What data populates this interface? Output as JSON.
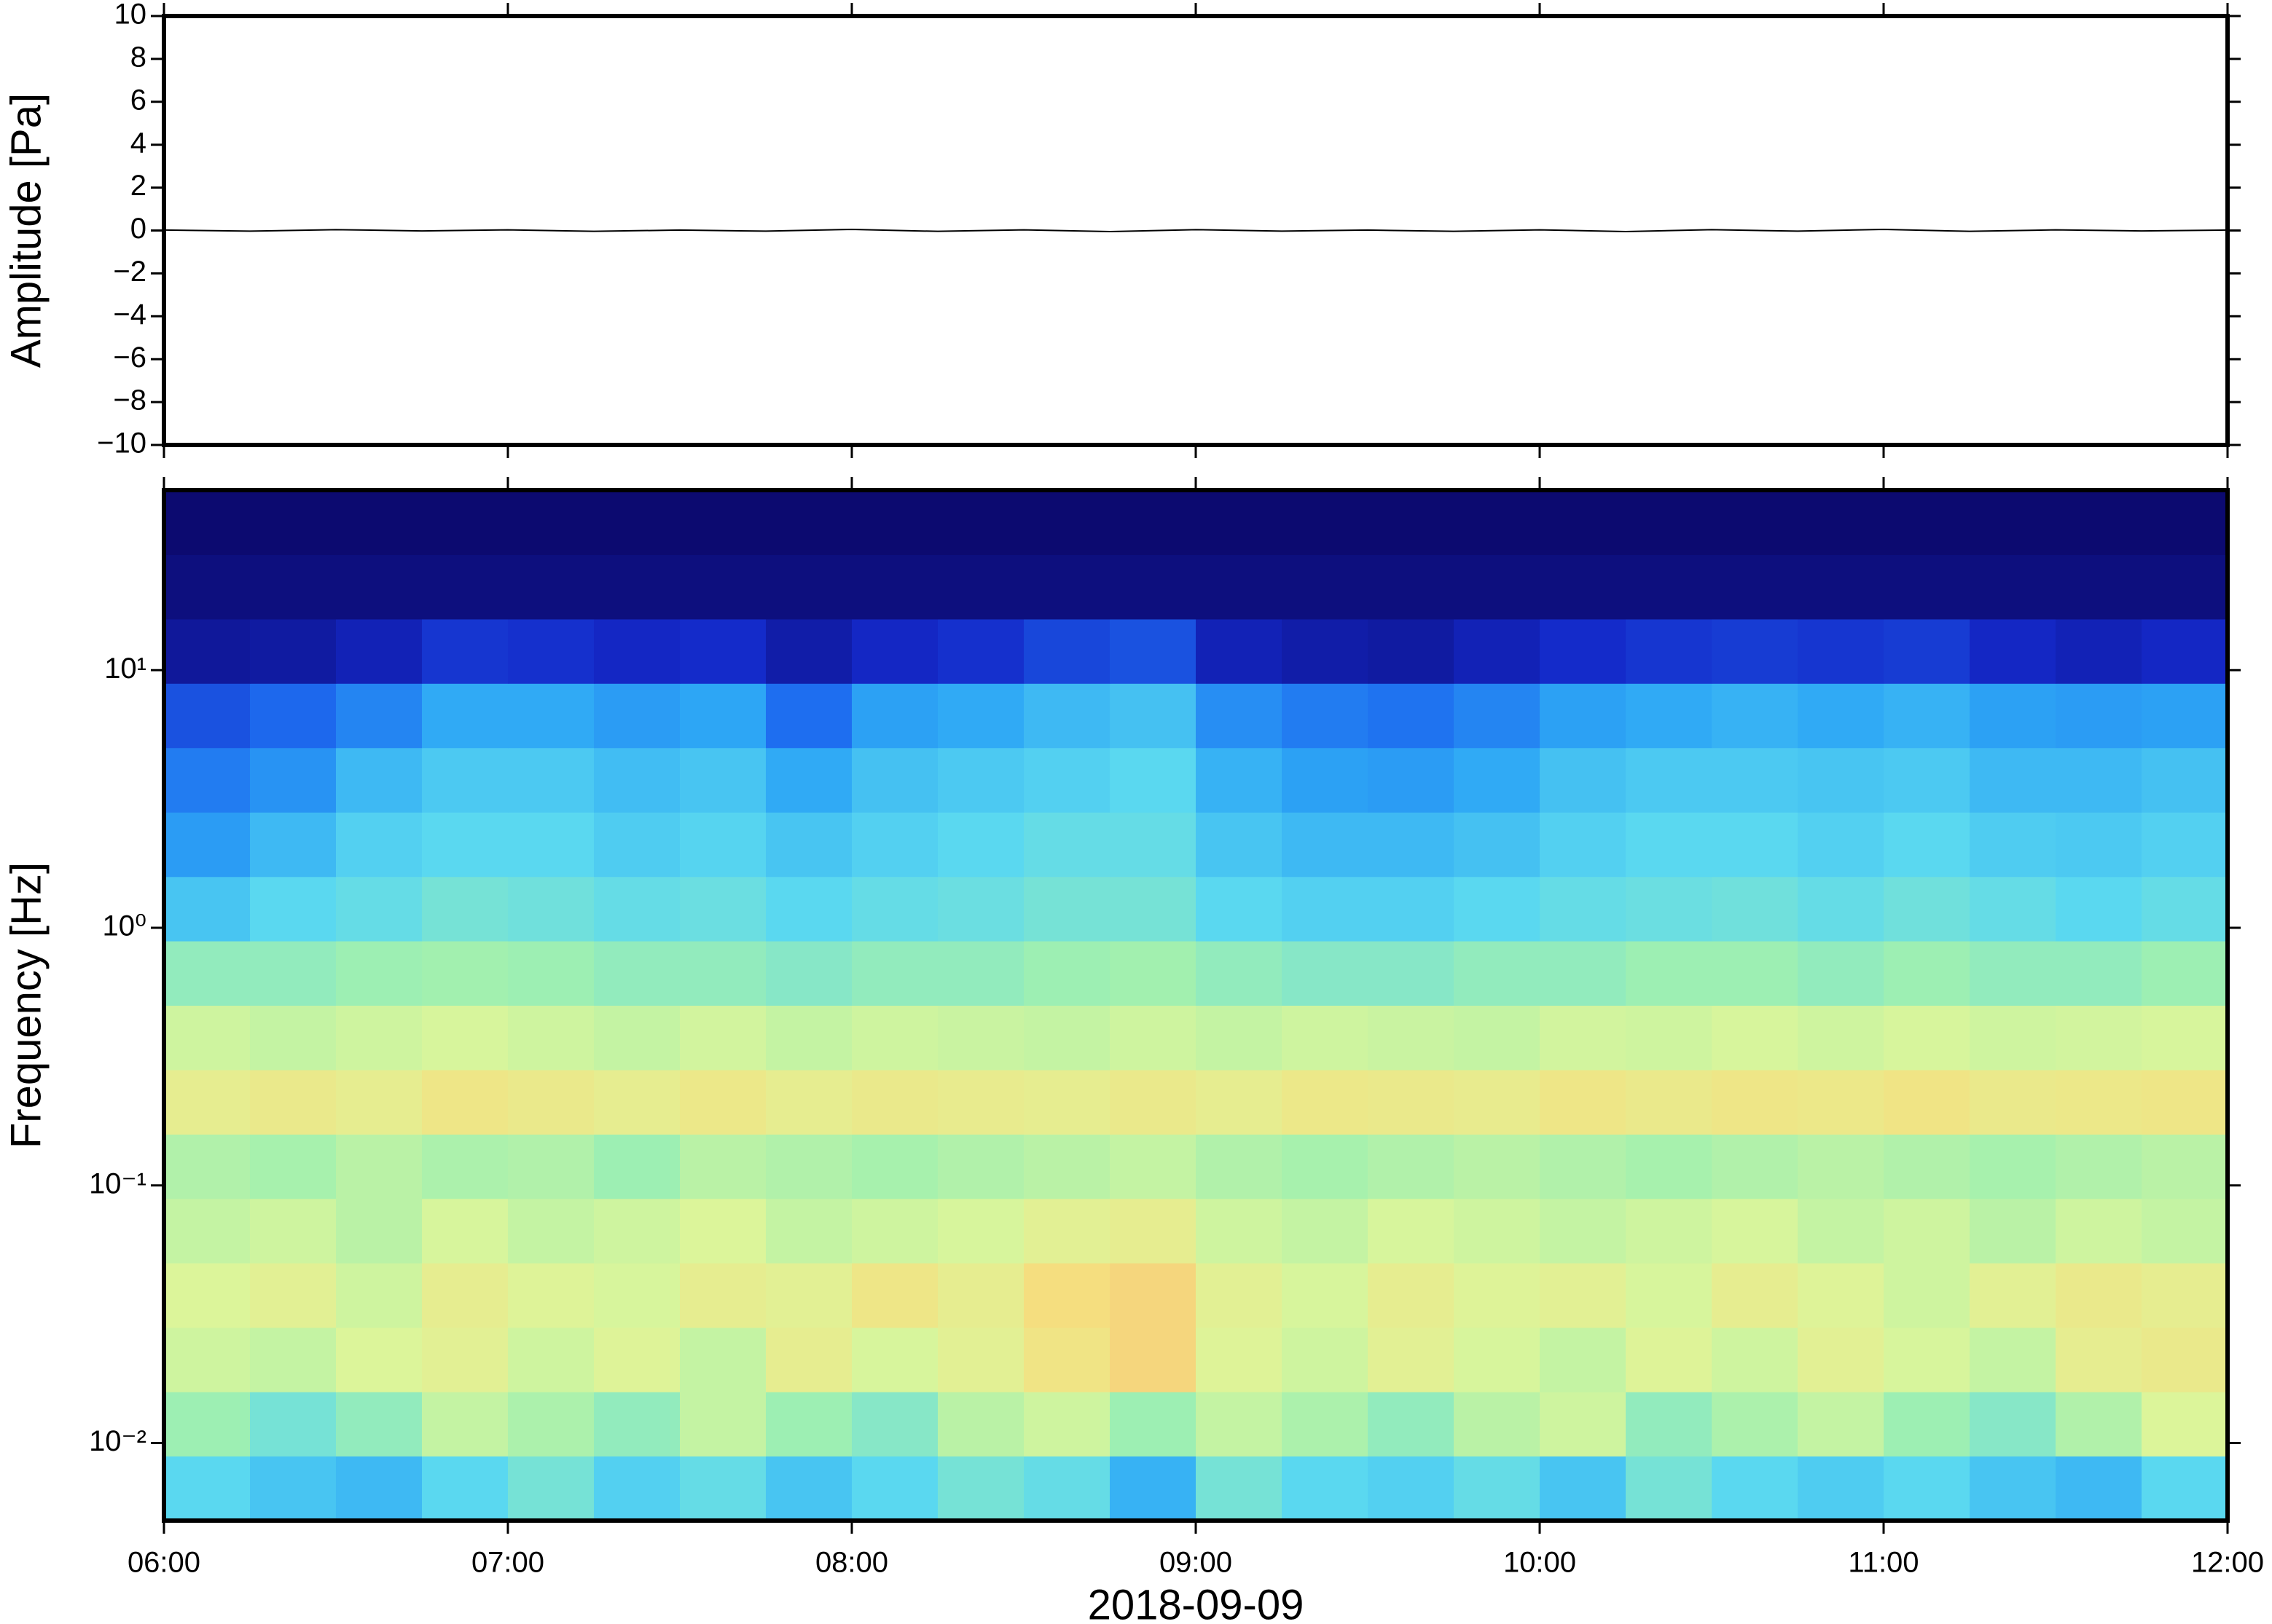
{
  "chart_data": [
    {
      "type": "line",
      "y_label": "Amplitude [Pa]",
      "xlim": [
        6,
        12
      ],
      "ylim": [
        -10,
        10
      ],
      "yticks": [
        {
          "value": 10,
          "label": "10"
        },
        {
          "value": 8,
          "label": "8"
        },
        {
          "value": 6,
          "label": "6"
        },
        {
          "value": 4,
          "label": "4"
        },
        {
          "value": 2,
          "label": "2"
        },
        {
          "value": 0,
          "label": "0"
        },
        {
          "value": -2,
          "label": "−2"
        },
        {
          "value": -4,
          "label": "−4"
        },
        {
          "value": -6,
          "label": "−6"
        },
        {
          "value": -8,
          "label": "−8"
        },
        {
          "value": -10,
          "label": "−10"
        }
      ],
      "x": [
        6,
        6.25,
        6.5,
        6.75,
        7,
        7.25,
        7.5,
        7.75,
        8,
        8.25,
        8.5,
        8.75,
        9,
        9.25,
        9.5,
        9.75,
        10,
        10.25,
        10.5,
        10.75,
        11,
        11.25,
        11.5,
        11.75,
        12
      ],
      "values": [
        0.02,
        -0.03,
        0.04,
        -0.02,
        0.03,
        -0.04,
        0.02,
        -0.03,
        0.05,
        -0.04,
        0.03,
        -0.05,
        0.04,
        -0.03,
        0.02,
        -0.04,
        0.03,
        -0.05,
        0.04,
        -0.03,
        0.05,
        -0.04,
        0.03,
        -0.02,
        0.02
      ],
      "color": "#000000"
    },
    {
      "type": "heatmap",
      "y_label": "Frequency [Hz]",
      "x_label": "2018-09-09",
      "xlim": [
        6,
        12
      ],
      "ylim": [
        0.005,
        50
      ],
      "ylog": true,
      "xticks": [
        {
          "value": 6,
          "label": "06:00"
        },
        {
          "value": 7,
          "label": "07:00"
        },
        {
          "value": 8,
          "label": "08:00"
        },
        {
          "value": 9,
          "label": "09:00"
        },
        {
          "value": 10,
          "label": "10:00"
        },
        {
          "value": 11,
          "label": "11:00"
        },
        {
          "value": 12,
          "label": "12:00"
        }
      ],
      "yticks": [
        {
          "value": 0.01,
          "label": "10⁻²"
        },
        {
          "value": 0.1,
          "label": "10⁻¹"
        },
        {
          "value": 1,
          "label": "10⁰"
        },
        {
          "value": 10,
          "label": "10¹"
        }
      ],
      "x_bins": [
        6,
        6.25,
        6.5,
        6.75,
        7,
        7.25,
        7.5,
        7.75,
        8,
        8.25,
        8.5,
        8.75,
        9,
        9.25,
        9.5,
        9.75,
        10,
        10.25,
        10.5,
        10.75,
        11,
        11.25,
        11.5,
        11.75,
        12
      ],
      "y_bins": [
        0.005,
        0.0089,
        0.0158,
        0.0281,
        0.05,
        0.0889,
        0.158,
        0.281,
        0.5,
        0.889,
        1.58,
        2.81,
        5,
        8.89,
        15.8,
        28.1,
        50
      ],
      "zlim": [
        0,
        1
      ],
      "colormap": [
        "#0c0a70",
        "#1428c8",
        "#1e6ef0",
        "#2ea8f5",
        "#5ad8f0",
        "#a0f0b0",
        "#dcf59a",
        "#f5e080",
        "#f5b070"
      ],
      "z": [
        [
          0.5,
          0.45,
          0.42,
          0.5,
          0.55,
          0.48,
          0.52,
          0.45,
          0.5,
          0.55,
          0.52,
          0.4,
          0.55,
          0.5,
          0.48,
          0.52,
          0.45,
          0.55,
          0.5,
          0.47,
          0.5,
          0.45,
          0.42,
          0.5
        ],
        [
          0.62,
          0.55,
          0.6,
          0.7,
          0.65,
          0.6,
          0.7,
          0.62,
          0.58,
          0.68,
          0.72,
          0.62,
          0.7,
          0.65,
          0.6,
          0.68,
          0.72,
          0.6,
          0.65,
          0.7,
          0.62,
          0.58,
          0.66,
          0.75
        ],
        [
          0.72,
          0.7,
          0.75,
          0.78,
          0.72,
          0.76,
          0.7,
          0.8,
          0.74,
          0.78,
          0.85,
          0.9,
          0.76,
          0.72,
          0.78,
          0.74,
          0.7,
          0.76,
          0.72,
          0.78,
          0.74,
          0.7,
          0.8,
          0.82
        ],
        [
          0.75,
          0.78,
          0.72,
          0.8,
          0.76,
          0.74,
          0.8,
          0.78,
          0.84,
          0.8,
          0.88,
          0.9,
          0.78,
          0.74,
          0.8,
          0.76,
          0.78,
          0.74,
          0.8,
          0.76,
          0.72,
          0.78,
          0.82,
          0.8
        ],
        [
          0.7,
          0.72,
          0.68,
          0.74,
          0.7,
          0.72,
          0.75,
          0.7,
          0.72,
          0.74,
          0.78,
          0.8,
          0.72,
          0.7,
          0.74,
          0.72,
          0.7,
          0.72,
          0.74,
          0.7,
          0.72,
          0.68,
          0.72,
          0.7
        ],
        [
          0.66,
          0.64,
          0.68,
          0.65,
          0.66,
          0.62,
          0.68,
          0.66,
          0.64,
          0.66,
          0.68,
          0.7,
          0.66,
          0.64,
          0.66,
          0.68,
          0.66,
          0.64,
          0.66,
          0.68,
          0.66,
          0.64,
          0.66,
          0.68
        ],
        [
          0.8,
          0.82,
          0.8,
          0.84,
          0.82,
          0.8,
          0.83,
          0.8,
          0.82,
          0.81,
          0.8,
          0.82,
          0.8,
          0.83,
          0.82,
          0.81,
          0.84,
          0.82,
          0.84,
          0.83,
          0.85,
          0.82,
          0.83,
          0.84
        ],
        [
          0.72,
          0.7,
          0.72,
          0.74,
          0.72,
          0.7,
          0.73,
          0.7,
          0.72,
          0.71,
          0.7,
          0.72,
          0.7,
          0.72,
          0.71,
          0.7,
          0.73,
          0.72,
          0.74,
          0.72,
          0.74,
          0.72,
          0.73,
          0.74
        ],
        [
          0.6,
          0.6,
          0.62,
          0.63,
          0.62,
          0.6,
          0.6,
          0.58,
          0.6,
          0.6,
          0.62,
          0.63,
          0.6,
          0.58,
          0.58,
          0.6,
          0.6,
          0.62,
          0.62,
          0.6,
          0.62,
          0.6,
          0.6,
          0.62
        ],
        [
          0.45,
          0.5,
          0.52,
          0.55,
          0.54,
          0.52,
          0.53,
          0.5,
          0.52,
          0.53,
          0.55,
          0.55,
          0.5,
          0.48,
          0.48,
          0.5,
          0.52,
          0.53,
          0.54,
          0.52,
          0.54,
          0.52,
          0.5,
          0.52
        ],
        [
          0.35,
          0.42,
          0.48,
          0.5,
          0.5,
          0.47,
          0.49,
          0.45,
          0.48,
          0.5,
          0.52,
          0.52,
          0.45,
          0.42,
          0.42,
          0.44,
          0.48,
          0.5,
          0.5,
          0.48,
          0.5,
          0.47,
          0.46,
          0.48
        ],
        [
          0.28,
          0.33,
          0.42,
          0.46,
          0.46,
          0.43,
          0.45,
          0.38,
          0.44,
          0.46,
          0.48,
          0.5,
          0.4,
          0.36,
          0.35,
          0.38,
          0.44,
          0.46,
          0.46,
          0.45,
          0.46,
          0.42,
          0.42,
          0.44
        ],
        [
          0.2,
          0.24,
          0.3,
          0.38,
          0.38,
          0.35,
          0.37,
          0.25,
          0.36,
          0.38,
          0.42,
          0.44,
          0.32,
          0.28,
          0.26,
          0.3,
          0.36,
          0.38,
          0.4,
          0.38,
          0.4,
          0.36,
          0.35,
          0.36
        ],
        [
          0.06,
          0.07,
          0.1,
          0.15,
          0.14,
          0.12,
          0.13,
          0.08,
          0.12,
          0.14,
          0.18,
          0.2,
          0.1,
          0.08,
          0.07,
          0.1,
          0.13,
          0.15,
          0.16,
          0.15,
          0.16,
          0.12,
          0.1,
          0.12
        ],
        [
          0.02,
          0.02,
          0.02,
          0.02,
          0.02,
          0.02,
          0.02,
          0.02,
          0.02,
          0.02,
          0.02,
          0.02,
          0.02,
          0.02,
          0.02,
          0.02,
          0.02,
          0.02,
          0.02,
          0.02,
          0.02,
          0.02,
          0.02,
          0.02
        ],
        [
          0,
          0,
          0,
          0,
          0,
          0,
          0,
          0,
          0,
          0,
          0,
          0,
          0,
          0,
          0,
          0,
          0,
          0,
          0,
          0,
          0,
          0,
          0,
          0
        ]
      ]
    }
  ]
}
